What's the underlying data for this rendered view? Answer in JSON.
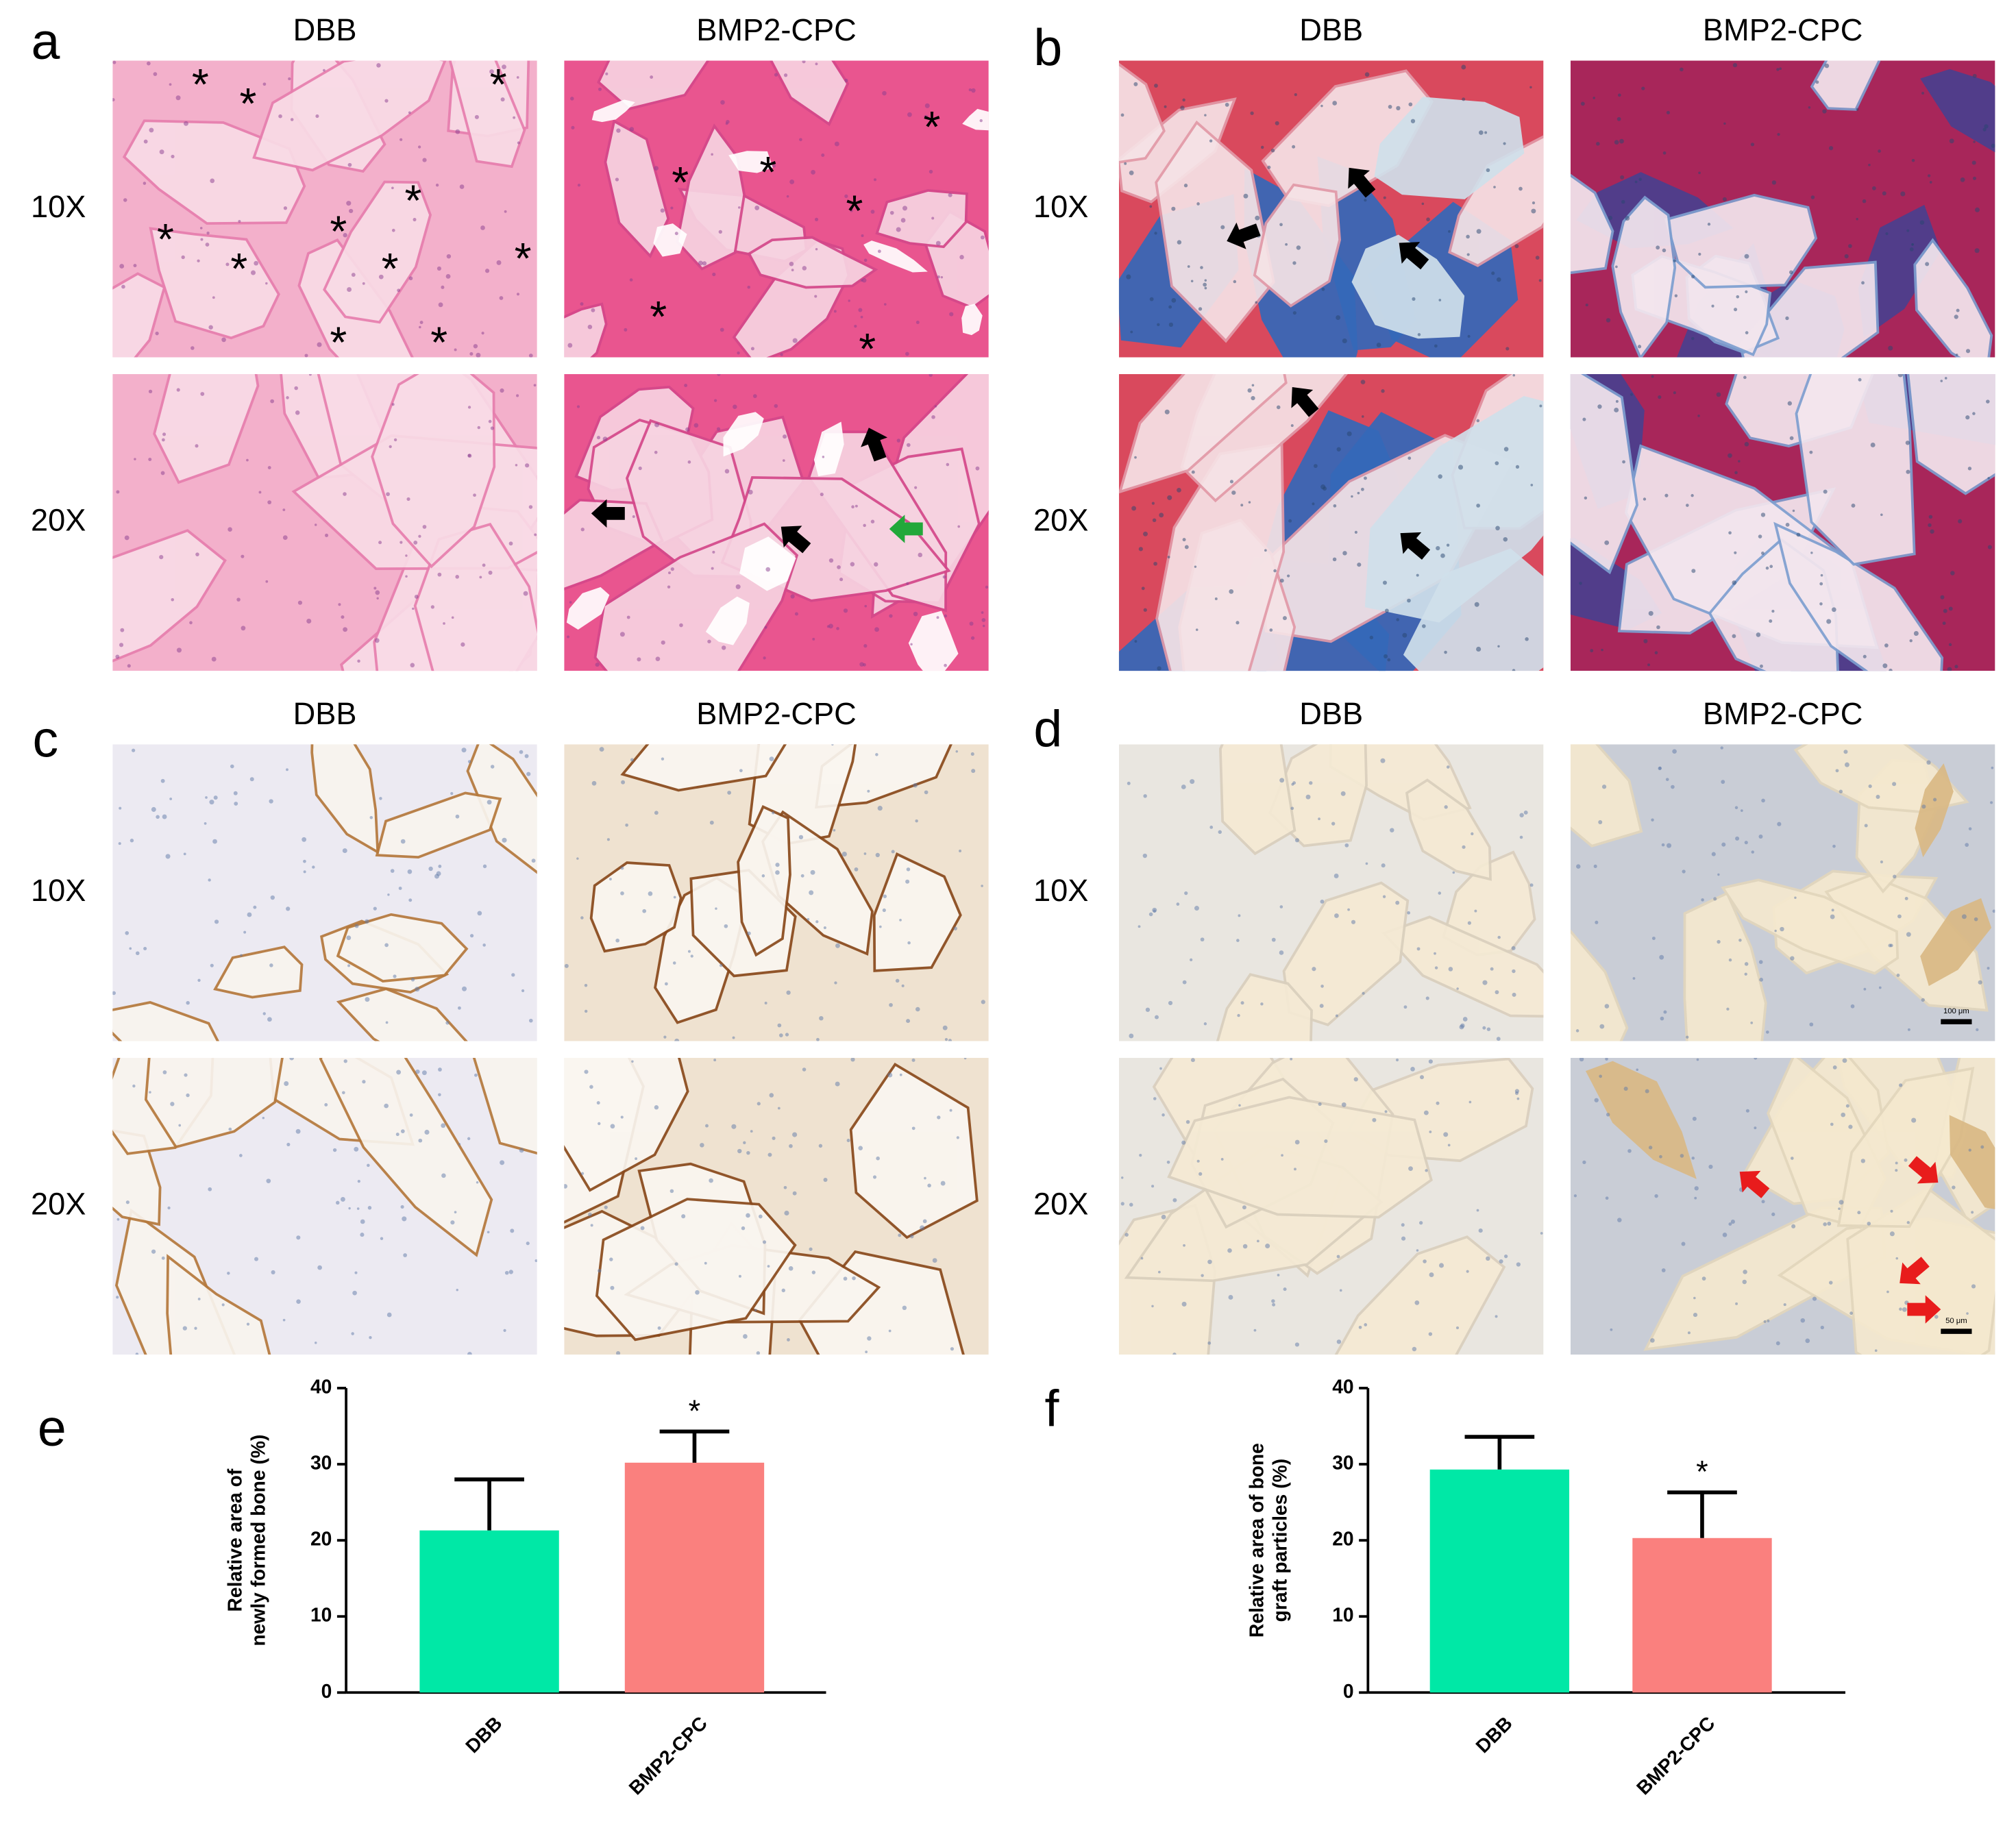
{
  "figure": {
    "panels": [
      {
        "label": "a",
        "columns": [
          "DBB",
          "BMP2-CPC"
        ],
        "rows": [
          "10X",
          "20X"
        ]
      },
      {
        "label": "b",
        "columns": [
          "DBB",
          "BMP2-CPC"
        ],
        "rows": [
          "10X",
          "20X"
        ]
      },
      {
        "label": "c",
        "columns": [
          "DBB",
          "BMP2-CPC"
        ],
        "rows": [
          "10X",
          "20X"
        ]
      },
      {
        "label": "d",
        "columns": [
          "DBB",
          "BMP2-CPC"
        ],
        "rows": [
          "10X",
          "20X"
        ]
      }
    ],
    "particle_marker": "*",
    "scale_bars": [
      "100 μm",
      "50 μm"
    ]
  },
  "chart_data": [
    {
      "type": "bar",
      "panel_label": "e",
      "ylabel": [
        "Relative area of",
        "newly formed bone (%)"
      ],
      "categories": [
        "DBB",
        "BMP2-CPC"
      ],
      "values": [
        21.3,
        30.2
      ],
      "errors": [
        6.7,
        4.1
      ],
      "significance": [
        null,
        "*"
      ],
      "colors": [
        "#00e8a6",
        "#fa807e"
      ],
      "ylim": [
        0,
        40
      ],
      "yticks": [
        0,
        10,
        20,
        30,
        40
      ]
    },
    {
      "type": "bar",
      "panel_label": "f",
      "ylabel": [
        "Relative area of bone",
        "graft particles (%)"
      ],
      "categories": [
        "DBB",
        "BMP2-CPC"
      ],
      "values": [
        29.3,
        20.3
      ],
      "errors": [
        4.3,
        6.0
      ],
      "significance": [
        null,
        "*"
      ],
      "colors": [
        "#00e8a6",
        "#fa807e"
      ],
      "ylim": [
        0,
        40
      ],
      "yticks": [
        0,
        10,
        20,
        30,
        40
      ]
    }
  ]
}
